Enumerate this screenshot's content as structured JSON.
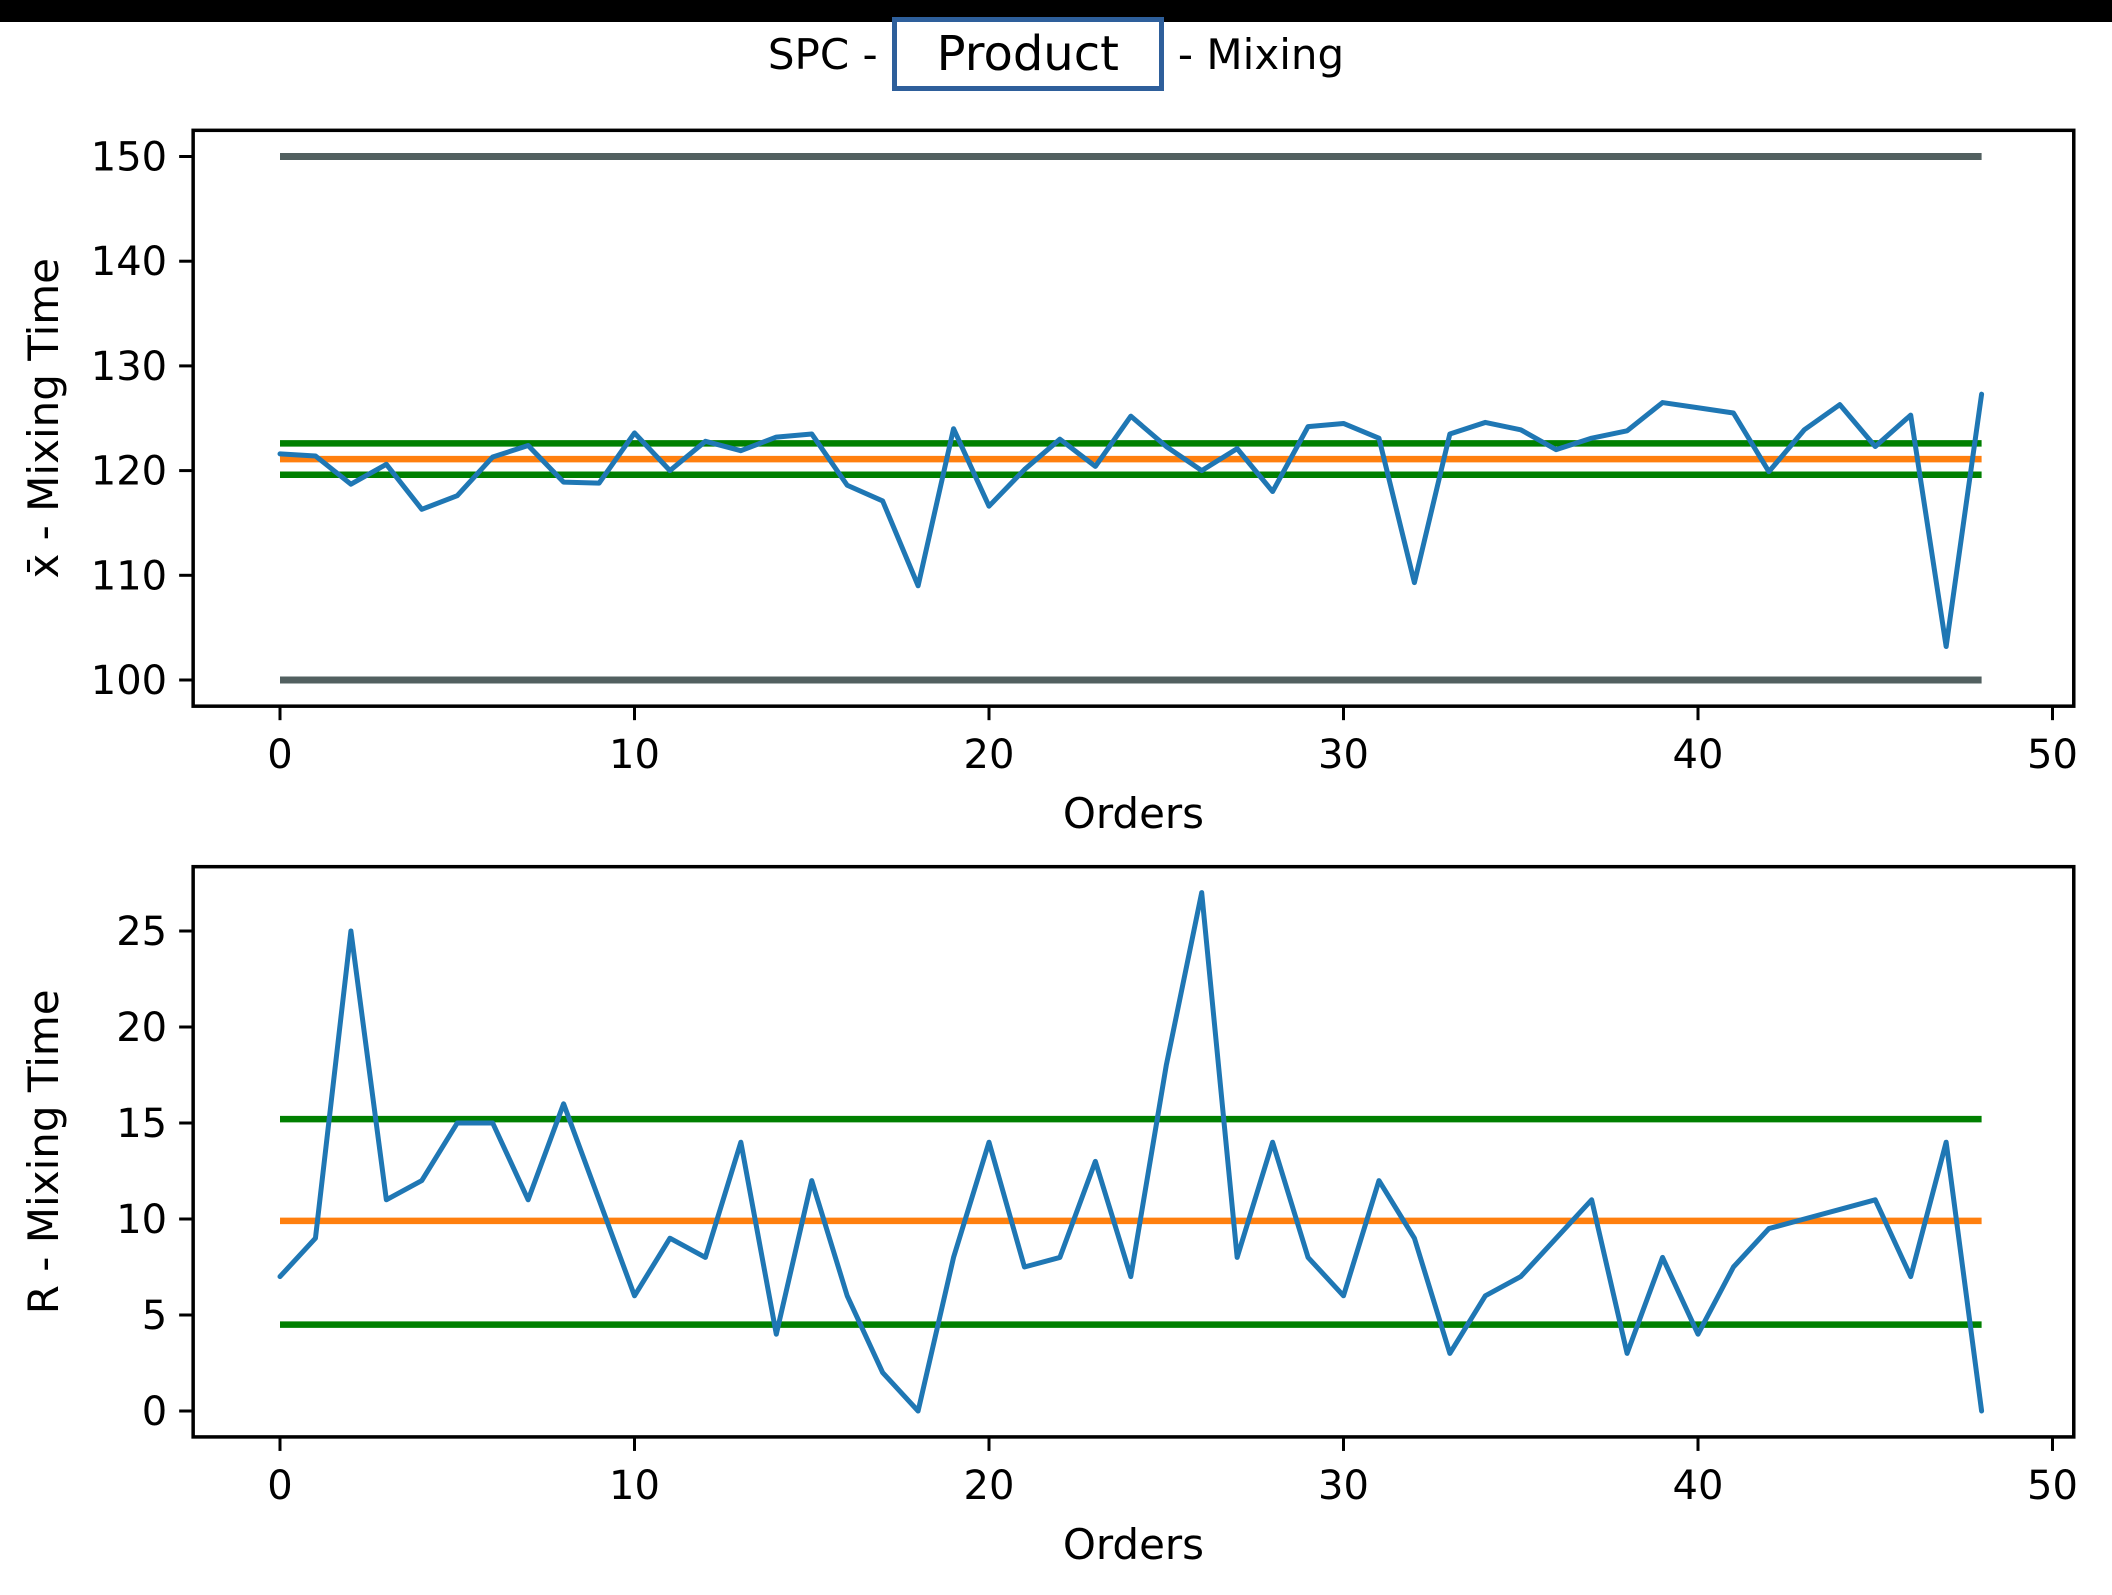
{
  "page": {
    "background": "#ffffff",
    "top_bar_color": "#000000"
  },
  "title": {
    "prefix": "SPC -",
    "product": "Product",
    "suffix": "- Mixing"
  },
  "colors": {
    "series": "#1f77b4",
    "center_line": "#ff7f0e",
    "control_limit": "#008000",
    "spec_limit": "#526060",
    "frame": "#000000",
    "tick_text": "#000000",
    "product_box_border": "#2e5f9b"
  },
  "chart_data": [
    {
      "type": "line",
      "name": "xbar-chart",
      "xlabel": "Orders",
      "ylabel": "x̄ - Mixing Time",
      "legend": null,
      "grid": false,
      "x": [
        0,
        1,
        2,
        3,
        4,
        5,
        6,
        7,
        8,
        9,
        10,
        11,
        12,
        13,
        14,
        15,
        16,
        17,
        18,
        19,
        20,
        21,
        22,
        23,
        24,
        25,
        26,
        27,
        28,
        29,
        30,
        31,
        32,
        33,
        34,
        35,
        36,
        37,
        38,
        39,
        40,
        41,
        42,
        43,
        44,
        45,
        46,
        47,
        48
      ],
      "values": [
        121.6,
        121.4,
        118.7,
        120.6,
        116.3,
        117.6,
        121.3,
        122.4,
        118.9,
        118.8,
        123.6,
        120.0,
        122.8,
        121.9,
        123.2,
        123.5,
        118.6,
        117.1,
        109.0,
        124.0,
        116.6,
        120.1,
        123.0,
        120.4,
        125.2,
        122.3,
        120.0,
        122.1,
        118.0,
        124.2,
        124.5,
        123.1,
        109.3,
        123.5,
        124.6,
        123.9,
        122.0,
        123.1,
        123.8,
        126.5,
        126.0,
        125.5,
        119.9,
        123.9,
        126.3,
        122.3,
        125.3,
        103.2,
        127.3
      ],
      "center_line": 121.1,
      "ucl": 122.6,
      "lcl": 119.6,
      "usl": 150,
      "lsl": 100,
      "xticks": [
        0,
        10,
        20,
        30,
        40,
        50
      ],
      "yticks": [
        100,
        110,
        120,
        130,
        140,
        150
      ],
      "xlim": [
        -2.45,
        50.6
      ],
      "ylim": [
        97.5,
        152.5
      ]
    },
    {
      "type": "line",
      "name": "r-chart",
      "xlabel": "Orders",
      "ylabel": "R - Mixing Time",
      "legend": null,
      "grid": false,
      "x": [
        0,
        1,
        2,
        3,
        4,
        5,
        6,
        7,
        8,
        9,
        10,
        11,
        12,
        13,
        14,
        15,
        16,
        17,
        18,
        19,
        20,
        21,
        22,
        23,
        24,
        25,
        26,
        27,
        28,
        29,
        30,
        31,
        32,
        33,
        34,
        35,
        36,
        37,
        38,
        39,
        40,
        41,
        42,
        43,
        44,
        45,
        46,
        47,
        48
      ],
      "values": [
        7,
        9,
        25,
        11,
        12,
        15,
        15,
        11,
        16,
        11,
        6,
        9,
        8,
        14,
        4,
        12,
        6,
        2,
        0,
        8,
        14,
        7.5,
        8,
        13,
        7,
        18,
        27,
        8,
        14,
        8,
        6,
        12,
        9,
        3,
        6,
        7,
        9,
        11,
        3,
        8,
        4,
        7.5,
        9.5,
        10,
        10.5,
        11,
        7,
        14,
        0
      ],
      "center_line": 9.9,
      "ucl": 15.2,
      "lcl": 4.5,
      "usl": null,
      "lsl": null,
      "xticks": [
        0,
        10,
        20,
        30,
        40,
        50
      ],
      "yticks": [
        0,
        5,
        10,
        15,
        20,
        25
      ],
      "xlim": [
        -2.45,
        50.6
      ],
      "ylim": [
        -1.35,
        28.35
      ]
    }
  ]
}
